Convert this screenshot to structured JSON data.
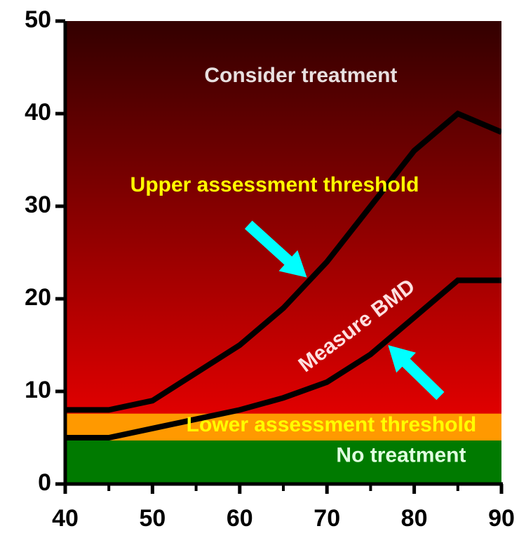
{
  "chart_data": {
    "type": "area",
    "x_axis": {
      "range": [
        40,
        90
      ],
      "ticks": [
        40,
        50,
        60,
        70,
        80,
        90
      ],
      "tick_labels": [
        "40",
        "50",
        "60",
        "70",
        "80",
        "90"
      ]
    },
    "y_axis": {
      "range": [
        0,
        50
      ],
      "ticks": [
        0,
        10,
        20,
        30,
        40,
        50
      ],
      "tick_labels": [
        "0",
        "10",
        "20",
        "30",
        "40",
        "50"
      ]
    },
    "grid": false,
    "bands": [
      {
        "name": "no_treatment",
        "y_from": 0,
        "y_to": 4.7,
        "color": "#007a00"
      },
      {
        "name": "lower_band",
        "y_from": 4.7,
        "y_to": 7.6,
        "color": "#ff9900"
      }
    ],
    "background_gradient": {
      "top": "#330000",
      "bottom": "#ff0000"
    },
    "series": [
      {
        "x": [
          40,
          45,
          50,
          55,
          60,
          65,
          70,
          75,
          80,
          85,
          90
        ],
        "y": [
          8,
          8,
          9,
          12,
          15,
          19,
          24,
          30,
          36,
          40,
          38
        ]
      },
      {
        "x": [
          40,
          45,
          50,
          55,
          60,
          65,
          70,
          75,
          80,
          85,
          90
        ],
        "y": [
          5,
          5,
          6,
          7,
          8,
          9.3,
          11,
          14,
          18,
          22,
          22
        ]
      }
    ],
    "annotations": [
      {
        "text": "Consider treatment",
        "x": 67,
        "y": 44,
        "color": "#e8e0e0",
        "rotate": 0
      },
      {
        "text": "Upper assessment threshold",
        "x": 64,
        "y": 32.2,
        "color": "#ffff00",
        "rotate": 0
      },
      {
        "text": "Measure BMD",
        "x": 73.5,
        "y": 17,
        "color": "#ffe0e0",
        "rotate": -37
      },
      {
        "text": "Lower assessment threshold",
        "x": 70.5,
        "y": 6.3,
        "color": "#ffff00",
        "rotate": 0
      },
      {
        "text": "No treatment",
        "x": 78.5,
        "y": 3,
        "color": "#e0ffe0",
        "rotate": 0
      }
    ],
    "arrows": [
      {
        "from": [
          61,
          28
        ],
        "to": [
          67.7,
          22.3
        ],
        "color": "#00ffff"
      },
      {
        "from": [
          83,
          9.5
        ],
        "to": [
          77,
          15
        ],
        "color": "#00ffff"
      }
    ]
  }
}
